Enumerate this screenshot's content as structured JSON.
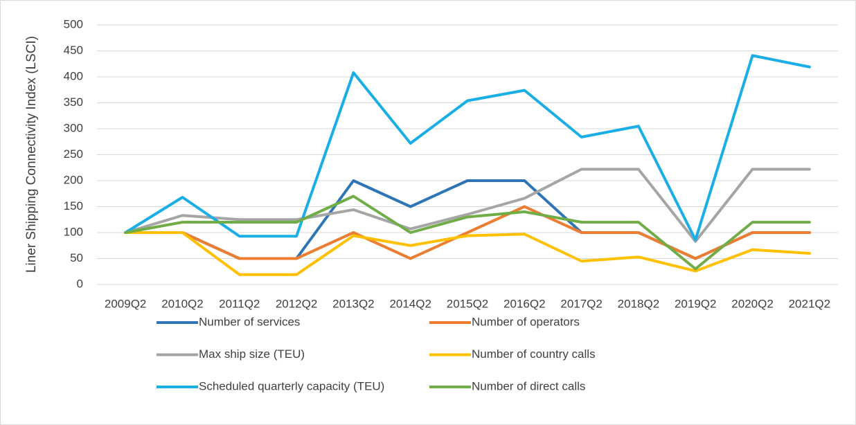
{
  "chart_data": {
    "type": "line",
    "y_label": "Liner Shipping Connectivity Index (LSCI)",
    "categories": [
      "2009Q2",
      "2010Q2",
      "2011Q2",
      "2012Q2",
      "2013Q2",
      "2014Q2",
      "2015Q2",
      "2016Q2",
      "2017Q2",
      "2018Q2",
      "2019Q2",
      "2020Q2",
      "2021Q2"
    ],
    "series": [
      {
        "name": "Number of services",
        "color": "#2e75b6",
        "values": [
          100,
          100,
          50,
          50,
          200,
          150,
          200,
          200,
          100,
          100,
          50,
          100,
          100
        ]
      },
      {
        "name": "Number of operators",
        "color": "#ed7d31",
        "values": [
          100,
          100,
          50,
          50,
          100,
          50,
          100,
          150,
          100,
          100,
          50,
          100,
          100
        ]
      },
      {
        "name": "Max ship size (TEU)",
        "color": "#a5a5a5",
        "values": [
          100,
          133,
          125,
          125,
          144,
          107,
          135,
          166,
          222,
          222,
          83,
          222,
          222
        ]
      },
      {
        "name": "Number of country calls",
        "color": "#ffc000",
        "values": [
          100,
          100,
          19,
          19,
          94,
          75,
          94,
          97,
          45,
          53,
          26,
          67,
          60
        ]
      },
      {
        "name": "Scheduled quarterly capacity (TEU)",
        "color": "#1aaee6",
        "values": [
          100,
          168,
          93,
          93,
          408,
          272,
          354,
          374,
          284,
          305,
          86,
          441,
          419
        ]
      },
      {
        "name": "Number of direct calls",
        "color": "#70ad47",
        "values": [
          100,
          120,
          120,
          120,
          170,
          100,
          130,
          140,
          120,
          120,
          30,
          120,
          120
        ]
      }
    ],
    "ylim": [
      0,
      500
    ],
    "yticks": [
      0,
      50,
      100,
      150,
      200,
      250,
      300,
      350,
      400,
      450,
      500
    ],
    "grid": true
  }
}
